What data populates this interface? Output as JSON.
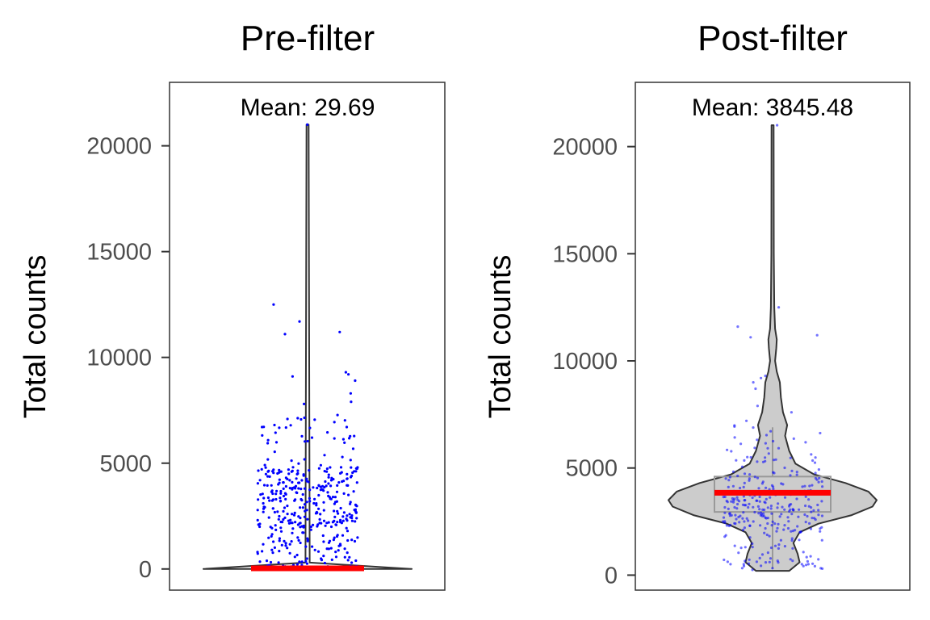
{
  "chart_data": [
    {
      "type": "violin",
      "title": "Pre-filter",
      "ylabel": "Total counts",
      "xlabel": "",
      "ylim": [
        -1000,
        23000
      ],
      "yticks": [
        0,
        5000,
        10000,
        15000,
        20000
      ],
      "grid": false,
      "annotation": "Mean: 29.69",
      "mean": 29.69,
      "max": 21000,
      "violin_profile": [
        {
          "y": 0,
          "halfwidth": 0.5
        },
        {
          "y": 300,
          "halfwidth": 0.01
        },
        {
          "y": 21000,
          "halfwidth": 0.005
        }
      ],
      "points_color": "#0000ff",
      "mean_line_color": "#ff0000",
      "outliers": [
        21000,
        12500,
        11700,
        11200,
        11100,
        9300,
        9200,
        9100,
        8900,
        8300,
        7900,
        7800
      ],
      "point_bands": [
        {
          "min": 2000,
          "max": 4800,
          "count": 260
        },
        {
          "min": 4800,
          "max": 7300,
          "count": 45
        },
        {
          "min": 0,
          "max": 2000,
          "count": 110
        }
      ]
    },
    {
      "type": "violin",
      "title": "Post-filter",
      "ylabel": "Total counts",
      "xlabel": "",
      "ylim": [
        -700,
        23000
      ],
      "yticks": [
        0,
        5000,
        10000,
        15000,
        20000
      ],
      "grid": false,
      "annotation": "Mean: 3845.48",
      "mean": 3845.48,
      "max": 21000,
      "box": {
        "q1": 2950,
        "median": 3750,
        "q3": 4600,
        "lower_whisker": 300,
        "upper_whisker": 6900
      },
      "violin_profile": [
        {
          "y": 200,
          "halfwidth": 0.08
        },
        {
          "y": 600,
          "halfwidth": 0.13
        },
        {
          "y": 1000,
          "halfwidth": 0.12
        },
        {
          "y": 1500,
          "halfwidth": 0.1
        },
        {
          "y": 2000,
          "halfwidth": 0.13
        },
        {
          "y": 2400,
          "halfwidth": 0.22
        },
        {
          "y": 2800,
          "halfwidth": 0.38
        },
        {
          "y": 3200,
          "halfwidth": 0.48
        },
        {
          "y": 3500,
          "halfwidth": 0.5
        },
        {
          "y": 3900,
          "halfwidth": 0.46
        },
        {
          "y": 4300,
          "halfwidth": 0.35
        },
        {
          "y": 4700,
          "halfwidth": 0.2
        },
        {
          "y": 5200,
          "halfwidth": 0.11
        },
        {
          "y": 5800,
          "halfwidth": 0.08
        },
        {
          "y": 6500,
          "halfwidth": 0.06
        },
        {
          "y": 7000,
          "halfwidth": 0.07
        },
        {
          "y": 7600,
          "halfwidth": 0.05
        },
        {
          "y": 8300,
          "halfwidth": 0.04
        },
        {
          "y": 9000,
          "halfwidth": 0.035
        },
        {
          "y": 9500,
          "halfwidth": 0.02
        },
        {
          "y": 10000,
          "halfwidth": 0.012
        },
        {
          "y": 10600,
          "halfwidth": 0.018
        },
        {
          "y": 11000,
          "halfwidth": 0.02
        },
        {
          "y": 11500,
          "halfwidth": 0.012
        },
        {
          "y": 12500,
          "halfwidth": 0.008
        },
        {
          "y": 15000,
          "halfwidth": 0.006
        },
        {
          "y": 21000,
          "halfwidth": 0.005
        }
      ],
      "violin_fill": "#cccccc",
      "points_color": "#0000ff",
      "mean_line_color": "#ff0000",
      "outliers": [
        21000,
        12500,
        11600,
        11200,
        11100,
        9300,
        9200,
        9000,
        8700,
        7900,
        7600,
        7200
      ],
      "point_bands": [
        {
          "min": 2000,
          "max": 4800,
          "count": 200
        },
        {
          "min": 4800,
          "max": 7000,
          "count": 40
        },
        {
          "min": 200,
          "max": 2000,
          "count": 60
        }
      ]
    }
  ]
}
